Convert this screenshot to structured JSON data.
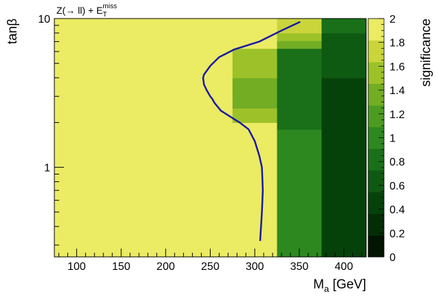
{
  "chart_data": {
    "type": "heatmap",
    "title": "Z(→ ll) + E",
    "title_sub": "T",
    "title_sup": "miss",
    "xlabel_main": "M",
    "xlabel_sub": "a",
    "xlabel_unit": " [GeV]",
    "ylabel": "tanβ",
    "zlabel": "significance",
    "x_ticks": [
      100,
      150,
      200,
      250,
      300,
      350,
      400
    ],
    "y_ticks": [
      {
        "value": 1,
        "label": "1"
      },
      {
        "value": 10,
        "label": "10"
      }
    ],
    "z_ticks": [
      "0",
      "0.2",
      "0.4",
      "0.6",
      "0.8",
      "1",
      "1.2",
      "1.4",
      "1.6",
      "1.8",
      "2"
    ],
    "xlim": [
      75,
      425
    ],
    "ylim": [
      0.25,
      10
    ],
    "zlim": [
      0,
      2
    ],
    "y_scale": "log",
    "grid": false,
    "x_edges": [
      75,
      275,
      325,
      375,
      425
    ],
    "y_edges": [
      0.25,
      1.3,
      1.8,
      2.0,
      2.5,
      3.0,
      4.0,
      4.5,
      6.3,
      7.1,
      8.0,
      10
    ],
    "z_values": [
      [
        2.0,
        2.0,
        1.05,
        0.45
      ],
      [
        2.0,
        2.0,
        1.05,
        0.45
      ],
      [
        2.0,
        1.85,
        0.88,
        0.45
      ],
      [
        2.0,
        1.62,
        0.88,
        0.45
      ],
      [
        2.0,
        1.45,
        0.88,
        0.45
      ],
      [
        2.0,
        1.4,
        0.88,
        0.45
      ],
      [
        2.0,
        1.55,
        0.88,
        0.55
      ],
      [
        2.0,
        1.62,
        0.88,
        0.62
      ],
      [
        2.0,
        2.0,
        1.38,
        0.72
      ],
      [
        2.0,
        2.0,
        1.5,
        0.72
      ],
      [
        2.0,
        2.0,
        1.7,
        0.82
      ]
    ],
    "contour": {
      "color": "#1a1aa6",
      "x": [
        306,
        308,
        309,
        308,
        305,
        300,
        293,
        283,
        272,
        262,
        255,
        252,
        250,
        246,
        243,
        242,
        243,
        250,
        260,
        277,
        305,
        330,
        351
      ],
      "y": [
        0.32,
        0.5,
        0.7,
        1.0,
        1.2,
        1.5,
        1.8,
        2.0,
        2.2,
        2.4,
        2.7,
        2.9,
        3.0,
        3.3,
        3.6,
        4.0,
        4.2,
        4.8,
        5.5,
        6.2,
        7.0,
        8.3,
        9.5
      ]
    },
    "palette": [
      "#021502",
      "#032e05",
      "#05420a",
      "#0e5a12",
      "#1a7019",
      "#2d891f",
      "#4d9c22",
      "#72ad24",
      "#9dc229",
      "#c9d53a",
      "#ebeb64"
    ]
  }
}
